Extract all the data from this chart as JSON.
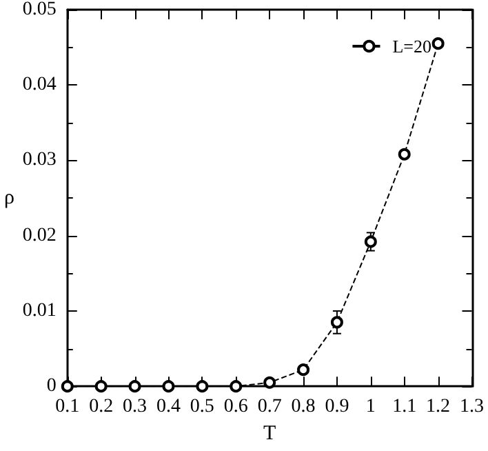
{
  "chart_data": {
    "type": "line",
    "xlabel": "T",
    "ylabel": "ρ",
    "x": [
      0.1,
      0.2,
      0.3,
      0.4,
      0.5,
      0.6,
      0.7,
      0.8,
      0.9,
      1.0,
      1.1,
      1.2
    ],
    "series": [
      {
        "name": "L=20",
        "color": "#000000",
        "values": [
          0,
          0,
          0,
          0,
          0,
          0,
          0.0005,
          0.0022,
          0.0085,
          0.0192,
          0.0308,
          0.0455
        ],
        "errors": [
          null,
          null,
          null,
          null,
          null,
          null,
          0.0004,
          0.0005,
          0.0015,
          0.0012,
          0.0005,
          0.0004
        ]
      }
    ],
    "xlim": [
      0.1,
      1.3
    ],
    "xticks": [
      0.1,
      0.2,
      0.3,
      0.4,
      0.5,
      0.6,
      0.7,
      0.8,
      0.9,
      1,
      1.1,
      1.2,
      1.3
    ],
    "ylim": [
      0,
      0.05
    ],
    "yticks": [
      0,
      0.01,
      0.02,
      0.03,
      0.04,
      0.05
    ],
    "grid": false,
    "legend": "top right",
    "marker": "circle",
    "line_style": "dashed"
  }
}
